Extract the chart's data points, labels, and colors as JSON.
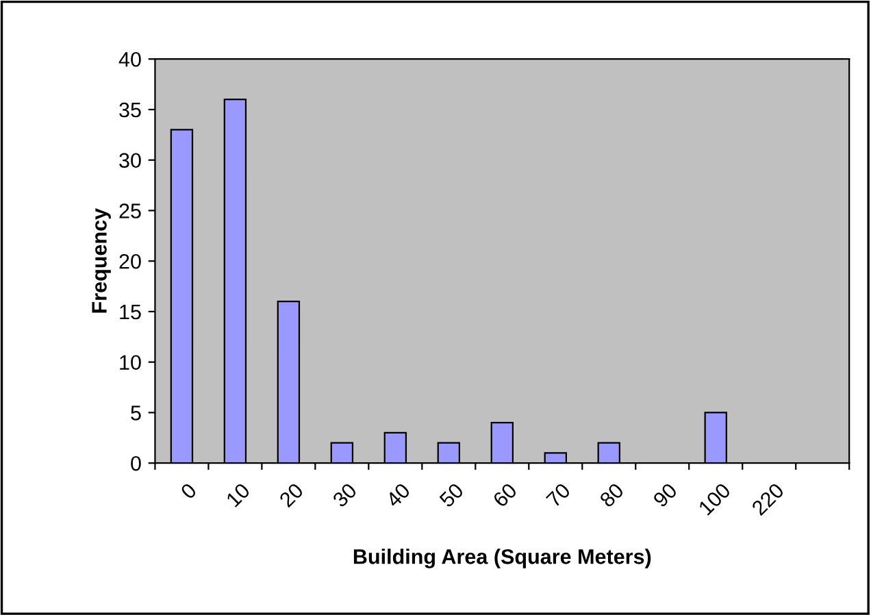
{
  "chart_data": {
    "type": "bar",
    "xlabel": "Building Area (Square Meters)",
    "ylabel": "Frequency",
    "categories": [
      "0",
      "10",
      "20",
      "30",
      "40",
      "50",
      "60",
      "70",
      "80",
      "90",
      "100",
      "220",
      null
    ],
    "values": [
      33,
      36,
      16,
      2,
      3,
      2,
      4,
      1,
      2,
      0,
      5,
      0,
      0
    ],
    "color": "#9999ff",
    "ylim": [
      0,
      40
    ],
    "yticks": [
      0,
      5,
      10,
      15,
      20,
      25,
      30,
      35,
      40
    ],
    "grid": false,
    "legend": false
  }
}
